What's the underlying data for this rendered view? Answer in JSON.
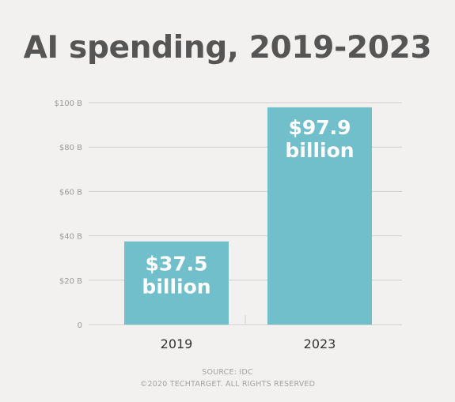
{
  "chart_data": {
    "type": "bar",
    "title": "AI spending, 2019-2023",
    "categories": [
      "2019",
      "2023"
    ],
    "values": [
      37.5,
      97.9
    ],
    "data_labels": [
      [
        "$37.5",
        "billion"
      ],
      [
        "$97.9",
        "billion"
      ]
    ],
    "y_ticks": [
      {
        "value": 0,
        "label": "0"
      },
      {
        "value": 20,
        "label": "$20 B"
      },
      {
        "value": 40,
        "label": "$40 B"
      },
      {
        "value": 60,
        "label": "$60 B"
      },
      {
        "value": 80,
        "label": "$80 B"
      },
      {
        "value": 100,
        "label": "$100 B"
      }
    ],
    "ylim": [
      0,
      100
    ],
    "xlabel": "",
    "ylabel": "",
    "grid": true,
    "colors": {
      "bar": "#72bfcc",
      "grid": "#cfcfcf",
      "title": "#555555",
      "tick_label": "#9a9a9a",
      "category_label": "#333333",
      "data_label": "#ffffff"
    }
  },
  "footer": {
    "source": "SOURCE: IDC",
    "copyright": "©2020 TECHTARGET. ALL RIGHTS RESERVED"
  }
}
